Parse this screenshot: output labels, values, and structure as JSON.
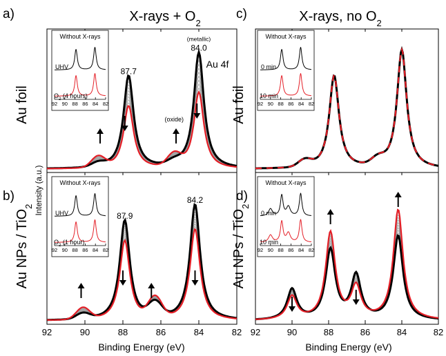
{
  "figure": {
    "col_titles": [
      {
        "main": "X-rays + O",
        "sub": "2"
      },
      {
        "main": "X-rays, no O",
        "sub": "2"
      }
    ],
    "row_labels": [
      {
        "main": "Au foil",
        "sub": "",
        "tail": ""
      },
      {
        "main": "Au NPs / TiO",
        "sub": "2",
        "tail": ""
      }
    ],
    "ylabel": "Intensity (a.u.)",
    "xlabel": "Binding Energy (eV)",
    "xticks": [
      "92",
      "90",
      "88",
      "86",
      "84",
      "82"
    ],
    "inset_xticks": [
      "92",
      "90",
      "88",
      "86",
      "84",
      "82"
    ]
  },
  "colors": {
    "black": "#000000",
    "red": "#e41e26",
    "gray": "#9a9a9a",
    "frame": "#000000"
  },
  "chart_data": [
    {
      "panel": "a)",
      "type": "line",
      "xlim": [
        92,
        82
      ],
      "xlabel": "",
      "ylabel": "",
      "series": [
        {
          "name": "",
          "color": "#000000",
          "peaks": [
            [
              87.7,
              0.68
            ],
            [
              84.0,
              0.85
            ]
          ],
          "shoulders": [
            [
              89.3,
              0.03
            ],
            [
              85.3,
              0.03
            ]
          ]
        },
        {
          "name": "",
          "color": "#e41e26",
          "peaks": [
            [
              87.7,
              0.46
            ],
            [
              84.0,
              0.56
            ]
          ],
          "shoulders": [
            [
              89.3,
              0.08
            ],
            [
              85.3,
              0.09
            ]
          ]
        }
      ],
      "labels": {
        "peak1": "87.7",
        "peak2": "84.0",
        "peak2_note": "(metallic)",
        "oxide": "(oxide)",
        "orbital": "Au 4f"
      },
      "arrows": [
        {
          "x": 89.2,
          "dir": "up"
        },
        {
          "x": 87.9,
          "dir": "down"
        },
        {
          "x": 85.2,
          "dir": "up"
        },
        {
          "x": 84.1,
          "dir": "down"
        }
      ],
      "inset": {
        "title": "Without X-rays",
        "top_label": "UHV",
        "bottom_label_main": "O",
        "bottom_label_sub": "2",
        "bottom_label_tail": " (4 hours)"
      }
    },
    {
      "panel": "b)",
      "type": "line",
      "xlim": [
        92,
        82
      ],
      "xlabel": "Binding Energy (eV)",
      "ylabel": "",
      "series": [
        {
          "name": "",
          "color": "#000000",
          "peaks": [
            [
              87.9,
              0.69
            ],
            [
              84.2,
              0.8
            ]
          ],
          "shoulders": [
            [
              90.1,
              0.04
            ],
            [
              86.3,
              0.1
            ]
          ]
        },
        {
          "name": "",
          "color": "#e41e26",
          "peaks": [
            [
              87.9,
              0.55
            ],
            [
              84.2,
              0.63
            ]
          ],
          "shoulders": [
            [
              90.1,
              0.08
            ],
            [
              86.3,
              0.14
            ]
          ]
        }
      ],
      "labels": {
        "peak1": "87.9",
        "peak2": "84.2"
      },
      "arrows": [
        {
          "x": 90.2,
          "dir": "up"
        },
        {
          "x": 88.0,
          "dir": "down"
        },
        {
          "x": 86.5,
          "dir": "up"
        },
        {
          "x": 84.2,
          "dir": "down"
        }
      ],
      "inset": {
        "title": "Without X-rays",
        "top_label": "UHV",
        "bottom_label_main": "O",
        "bottom_label_sub": "2",
        "bottom_label_tail": " (1 hour)"
      }
    },
    {
      "panel": "c)",
      "type": "line",
      "xlim": [
        92,
        82
      ],
      "xlabel": "",
      "ylabel": "",
      "series": [
        {
          "name": "",
          "color": "#000000",
          "peaks": [
            [
              87.7,
              0.68
            ],
            [
              84.0,
              0.87
            ]
          ],
          "shoulders": [
            [
              89.3,
              0.05
            ],
            [
              85.3,
              0.05
            ]
          ]
        },
        {
          "name": "",
          "color": "#e41e26",
          "peaks": [
            [
              87.7,
              0.68
            ],
            [
              84.0,
              0.87
            ]
          ],
          "shoulders": [
            [
              89.3,
              0.05
            ],
            [
              85.3,
              0.05
            ]
          ]
        }
      ],
      "labels": {},
      "arrows": [],
      "inset": {
        "title": "Without X-rays",
        "top_label": "0 min",
        "bottom_label_main": "10 min",
        "bottom_label_sub": "",
        "bottom_label_tail": ""
      }
    },
    {
      "panel": "d)",
      "type": "line",
      "xlim": [
        92,
        82
      ],
      "xlabel": "Binding Energy (eV)",
      "ylabel": "",
      "series": [
        {
          "name": "",
          "color": "#000000",
          "peaks": [
            [
              87.9,
              0.48
            ],
            [
              84.2,
              0.58
            ],
            [
              90.0,
              0.21
            ],
            [
              86.5,
              0.3
            ]
          ],
          "shoulders": []
        },
        {
          "name": "",
          "color": "#e41e26",
          "peaks": [
            [
              87.9,
              0.6
            ],
            [
              84.2,
              0.76
            ],
            [
              90.0,
              0.16
            ],
            [
              86.5,
              0.22
            ]
          ],
          "shoulders": []
        }
      ],
      "labels": {},
      "arrows": [
        {
          "x": 90.0,
          "dir": "down"
        },
        {
          "x": 87.9,
          "dir": "up"
        },
        {
          "x": 86.5,
          "dir": "down"
        },
        {
          "x": 84.2,
          "dir": "up"
        }
      ],
      "inset": {
        "title": "Without X-rays",
        "top_label": "0 min",
        "bottom_label_main": "10 min",
        "bottom_label_sub": "",
        "bottom_label_tail": ""
      }
    }
  ]
}
